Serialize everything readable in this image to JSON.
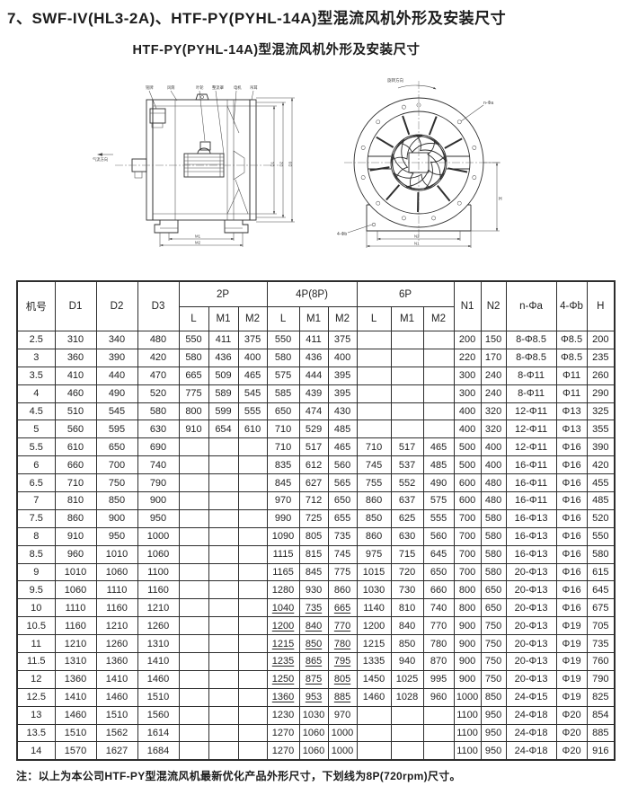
{
  "page": {
    "title": "7、SWF-IV(HL3-2A)、HTF-PY(PYHL-14A)型混流风机外形及安装尺寸",
    "subtitle": "HTF-PY(PYHL-14A)型混流风机外形及安装尺寸",
    "footnote": "注：以上为本公司HTF-PY型混流风机最新优化产品外形尺寸，下划线为8P(720rpm)尺寸。",
    "ink_color": "#2d2d2d"
  },
  "drawings": {
    "side_view": {
      "part_labels": [
        "铭牌",
        "风筒",
        "叶轮",
        "整流罩",
        "电机",
        "吊耳"
      ],
      "airflow_label": "气流方向",
      "dim_bottom_inner": "M1",
      "dim_bottom_outer": "M2",
      "dim_right": [
        "D1",
        "D2",
        "D3"
      ]
    },
    "front_view": {
      "rotation_label": "旋转方向",
      "bolt_circle_label": "n-Φa",
      "base_bolt_label": "4-Φb",
      "dim_inner": "N2",
      "dim_outer": "N1",
      "dim_height": "H"
    }
  },
  "table": {
    "header": {
      "machine_no": "机号",
      "d1": "D1",
      "d2": "D2",
      "d3": "D3",
      "group_2p": "2P",
      "group_4p": "4P(8P)",
      "group_6p": "6P",
      "sub": [
        "L",
        "M1",
        "M2"
      ],
      "n1": "N1",
      "n2": "N2",
      "n_phi_a": "n-Φa",
      "four_phi_b": "4-Φb",
      "h": "H"
    },
    "rows": [
      {
        "c": [
          "2.5",
          "310",
          "340",
          "480",
          "550",
          "411",
          "375",
          "550",
          "411",
          "375",
          "",
          "",
          "",
          "200",
          "150",
          "8-Φ8.5",
          "Φ8.5",
          "200"
        ]
      },
      {
        "c": [
          "3",
          "360",
          "390",
          "420",
          "580",
          "436",
          "400",
          "580",
          "436",
          "400",
          "",
          "",
          "",
          "220",
          "170",
          "8-Φ8.5",
          "Φ8.5",
          "235"
        ]
      },
      {
        "c": [
          "3.5",
          "410",
          "440",
          "470",
          "665",
          "509",
          "465",
          "575",
          "444",
          "395",
          "",
          "",
          "",
          "300",
          "240",
          "8-Φ11",
          "Φ11",
          "260"
        ]
      },
      {
        "c": [
          "4",
          "460",
          "490",
          "520",
          "775",
          "589",
          "545",
          "585",
          "439",
          "395",
          "",
          "",
          "",
          "300",
          "240",
          "8-Φ11",
          "Φ11",
          "290"
        ]
      },
      {
        "c": [
          "4.5",
          "510",
          "545",
          "580",
          "800",
          "599",
          "555",
          "650",
          "474",
          "430",
          "",
          "",
          "",
          "400",
          "320",
          "12-Φ11",
          "Φ13",
          "325"
        ]
      },
      {
        "c": [
          "5",
          "560",
          "595",
          "630",
          "910",
          "654",
          "610",
          "710",
          "529",
          "485",
          "",
          "",
          "",
          "400",
          "320",
          "12-Φ11",
          "Φ13",
          "355"
        ]
      },
      {
        "c": [
          "5.5",
          "610",
          "650",
          "690",
          "",
          "",
          "",
          "710",
          "517",
          "465",
          "710",
          "517",
          "465",
          "500",
          "400",
          "12-Φ11",
          "Φ16",
          "390"
        ]
      },
      {
        "c": [
          "6",
          "660",
          "700",
          "740",
          "",
          "",
          "",
          "835",
          "612",
          "560",
          "745",
          "537",
          "485",
          "500",
          "400",
          "16-Φ11",
          "Φ16",
          "420"
        ]
      },
      {
        "c": [
          "6.5",
          "710",
          "750",
          "790",
          "",
          "",
          "",
          "845",
          "627",
          "565",
          "755",
          "552",
          "490",
          "600",
          "480",
          "16-Φ11",
          "Φ16",
          "455"
        ]
      },
      {
        "c": [
          "7",
          "810",
          "850",
          "900",
          "",
          "",
          "",
          "970",
          "712",
          "650",
          "860",
          "637",
          "575",
          "600",
          "480",
          "16-Φ11",
          "Φ16",
          "485"
        ]
      },
      {
        "c": [
          "7.5",
          "860",
          "900",
          "950",
          "",
          "",
          "",
          "990",
          "725",
          "655",
          "850",
          "625",
          "555",
          "700",
          "580",
          "16-Φ13",
          "Φ16",
          "520"
        ]
      },
      {
        "c": [
          "8",
          "910",
          "950",
          "1000",
          "",
          "",
          "",
          "1090",
          "805",
          "735",
          "860",
          "630",
          "560",
          "700",
          "580",
          "16-Φ13",
          "Φ16",
          "550"
        ]
      },
      {
        "c": [
          "8.5",
          "960",
          "1010",
          "1060",
          "",
          "",
          "",
          "1115",
          "815",
          "745",
          "975",
          "715",
          "645",
          "700",
          "580",
          "16-Φ13",
          "Φ16",
          "580"
        ]
      },
      {
        "c": [
          "9",
          "1010",
          "1060",
          "1100",
          "",
          "",
          "",
          "1165",
          "845",
          "775",
          "1015",
          "720",
          "650",
          "700",
          "580",
          "20-Φ13",
          "Φ16",
          "615"
        ]
      },
      {
        "c": [
          "9.5",
          "1060",
          "1110",
          "1160",
          "",
          "",
          "",
          "1280",
          "930",
          "860",
          "1030",
          "730",
          "660",
          "800",
          "650",
          "20-Φ13",
          "Φ16",
          "645"
        ]
      },
      {
        "c": [
          "10",
          "1110",
          "1160",
          "1210",
          "",
          "",
          "",
          "1040",
          "735",
          "665",
          "1140",
          "810",
          "740",
          "800",
          "650",
          "20-Φ13",
          "Φ16",
          "675"
        ],
        "u": [
          7,
          8,
          9
        ]
      },
      {
        "c": [
          "10.5",
          "1160",
          "1210",
          "1260",
          "",
          "",
          "",
          "1200",
          "840",
          "770",
          "1200",
          "840",
          "770",
          "900",
          "750",
          "20-Φ13",
          "Φ19",
          "705"
        ],
        "u": [
          7,
          8,
          9
        ]
      },
      {
        "c": [
          "11",
          "1210",
          "1260",
          "1310",
          "",
          "",
          "",
          "1215",
          "850",
          "780",
          "1215",
          "850",
          "780",
          "900",
          "750",
          "20-Φ13",
          "Φ19",
          "735"
        ],
        "u": [
          7,
          8,
          9
        ]
      },
      {
        "c": [
          "11.5",
          "1310",
          "1360",
          "1410",
          "",
          "",
          "",
          "1235",
          "865",
          "795",
          "1335",
          "940",
          "870",
          "900",
          "750",
          "20-Φ13",
          "Φ19",
          "760"
        ],
        "u": [
          7,
          8,
          9
        ]
      },
      {
        "c": [
          "12",
          "1360",
          "1410",
          "1460",
          "",
          "",
          "",
          "1250",
          "875",
          "805",
          "1450",
          "1025",
          "995",
          "900",
          "750",
          "20-Φ13",
          "Φ19",
          "790"
        ],
        "u": [
          7,
          8,
          9
        ]
      },
      {
        "c": [
          "12.5",
          "1410",
          "1460",
          "1510",
          "",
          "",
          "",
          "1360",
          "953",
          "885",
          "1460",
          "1028",
          "960",
          "1000",
          "850",
          "24-Φ15",
          "Φ19",
          "825"
        ],
        "u": [
          7,
          8,
          9
        ]
      },
      {
        "c": [
          "13",
          "1460",
          "1510",
          "1560",
          "",
          "",
          "",
          "1230",
          "1030",
          "970",
          "",
          "",
          "",
          "1100",
          "950",
          "24-Φ18",
          "Φ20",
          "854"
        ]
      },
      {
        "c": [
          "13.5",
          "1510",
          "1562",
          "1614",
          "",
          "",
          "",
          "1270",
          "1060",
          "1000",
          "",
          "",
          "",
          "1100",
          "950",
          "24-Φ18",
          "Φ20",
          "885"
        ]
      },
      {
        "c": [
          "14",
          "1570",
          "1627",
          "1684",
          "",
          "",
          "",
          "1270",
          "1060",
          "1000",
          "",
          "",
          "",
          "1100",
          "950",
          "24-Φ18",
          "Φ20",
          "916"
        ]
      }
    ]
  }
}
